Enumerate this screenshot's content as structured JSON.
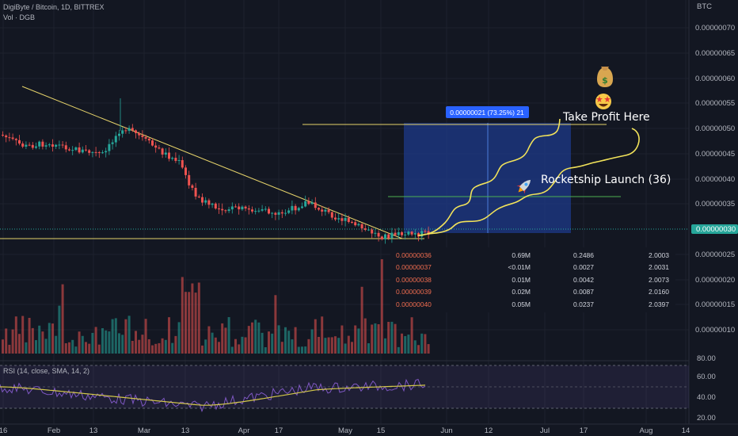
{
  "header": {
    "symbol": "DigiByte / Bitcoin, 1D, BITTREX",
    "volume_label": "Vol · DGB",
    "currency": "BTC"
  },
  "price_axis": {
    "labels": [
      "0.00000070",
      "0.00000065",
      "0.00000060",
      "0.00000055",
      "0.00000050",
      "0.00000045",
      "0.00000040",
      "0.00000035",
      "0.00000025",
      "0.00000020",
      "0.00000015",
      "0.00000010"
    ],
    "current": "0.00000030"
  },
  "rsi": {
    "label": "RSI (14, close, SMA, 14, 2)",
    "axis_labels": [
      "80.00",
      "60.00",
      "40.00",
      "20.00"
    ]
  },
  "time_axis": {
    "labels": [
      "16",
      "Feb",
      "13",
      "Mar",
      "13",
      "Apr",
      "17",
      "May",
      "15",
      "Jun",
      "12",
      "Jul",
      "17",
      "Aug",
      "14"
    ]
  },
  "measure": {
    "label": "0.00000021 (73.25%) 21"
  },
  "annotations": {
    "take_profit": "Take Profit Here",
    "rocket": "Rocketship Launch (36)",
    "icons": [
      "money-bag-icon",
      "star-struck-icon",
      "rocket-icon"
    ]
  },
  "position_table": {
    "rows": [
      {
        "price": "0.00000036",
        "qty": "0.69M",
        "amount": "0.2486",
        "ratio": "2.0003"
      },
      {
        "price": "0.00000037",
        "qty": "<0.01M",
        "amount": "0.0027",
        "ratio": "2.0031"
      },
      {
        "price": "0.00000038",
        "qty": "0.01M",
        "amount": "0.0042",
        "ratio": "2.0073"
      },
      {
        "price": "0.00000039",
        "qty": "0.02M",
        "amount": "0.0087",
        "ratio": "2.0160"
      },
      {
        "price": "0.00000040",
        "qty": "0.05M",
        "amount": "0.0237",
        "ratio": "2.0397"
      }
    ]
  },
  "colors": {
    "background": "#131722",
    "bullish": "#26a69a",
    "bearish": "#ef5350",
    "trendline": "#e6d36a",
    "path": "#f2e35a",
    "measure_fill": "#1e3a8a",
    "rsi_line": "#7e57c2",
    "rsi_sma": "#d4c84a",
    "current_price": "#26a69a"
  }
}
